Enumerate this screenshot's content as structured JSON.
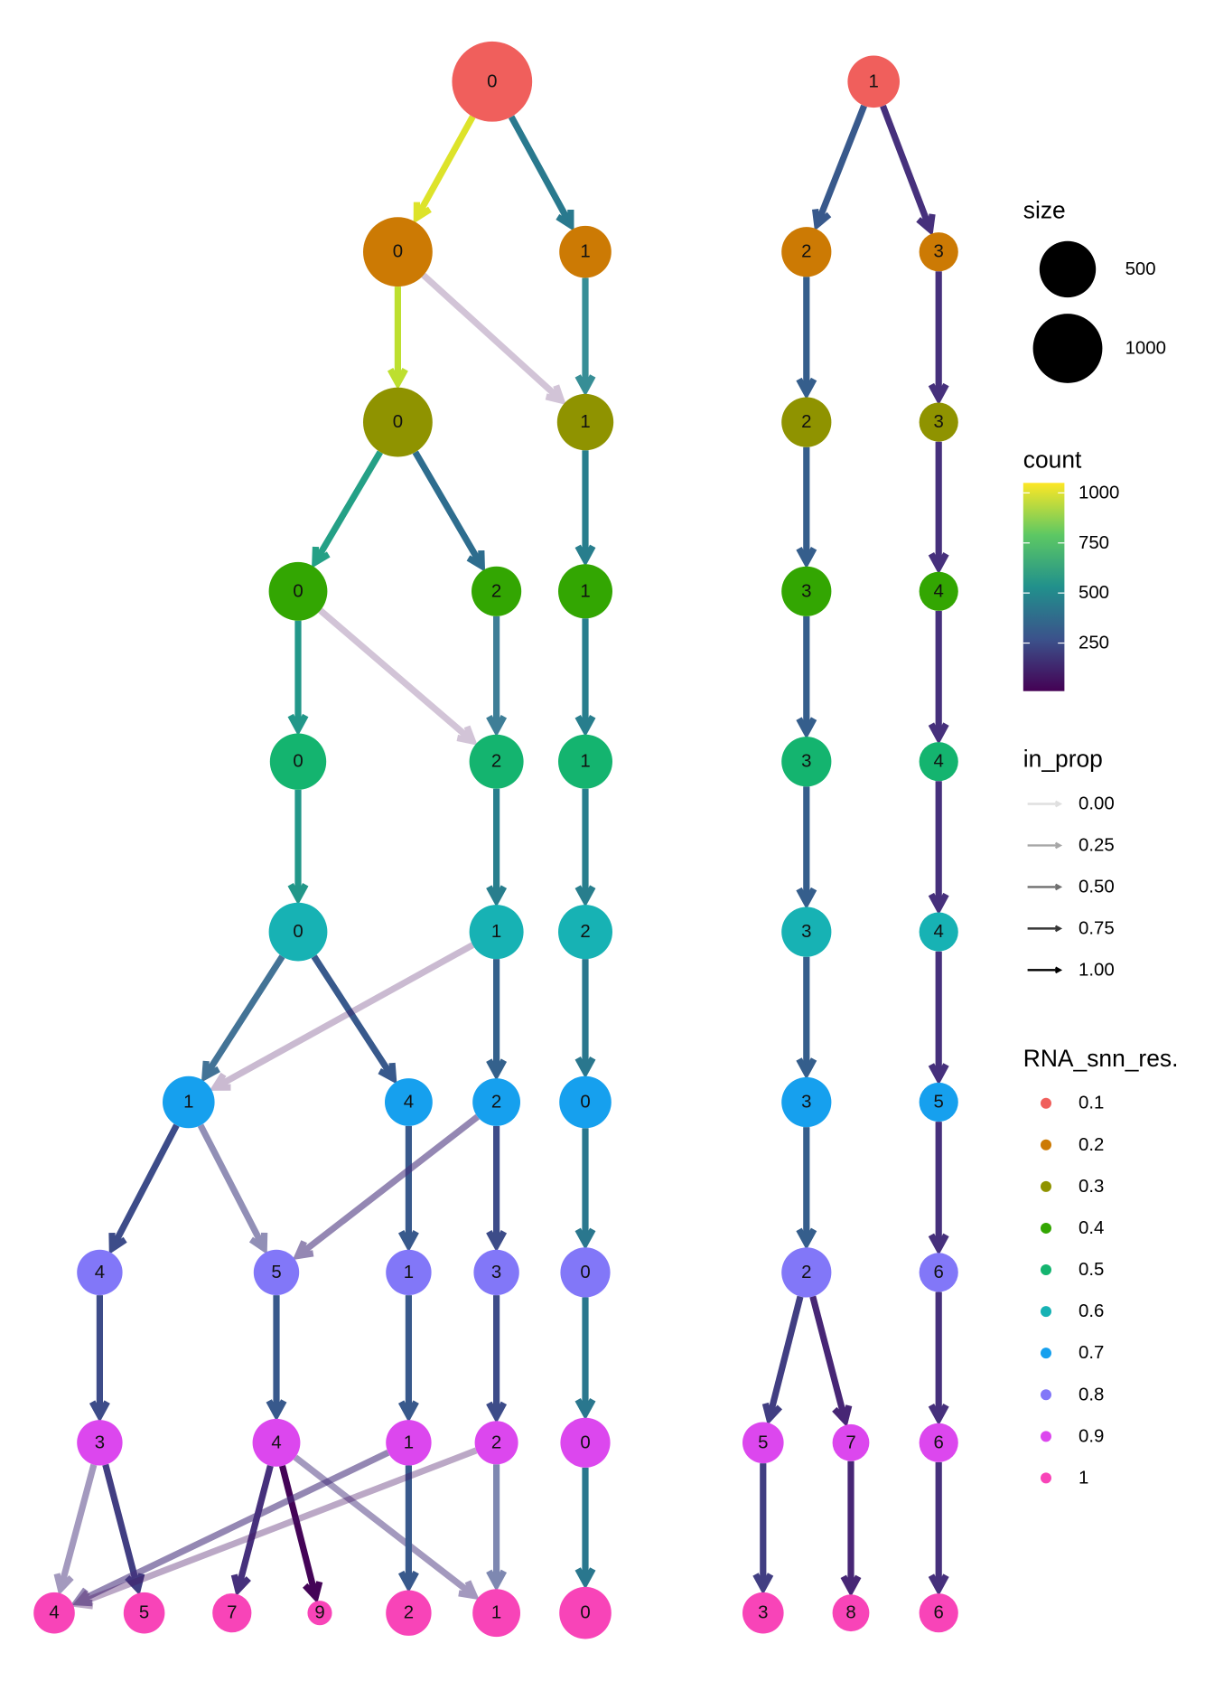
{
  "levels": [
    {
      "res": "0.1",
      "color": "#F05F5C",
      "nodes": [
        {
          "label": "0",
          "size": 1480
        },
        {
          "label": "1",
          "size": 425
        }
      ]
    },
    {
      "res": "0.2",
      "color": "#CC7A04",
      "nodes": [
        {
          "label": "0",
          "size": 1000
        },
        {
          "label": "1",
          "size": 425
        },
        {
          "label": "2",
          "size": 370
        },
        {
          "label": "3",
          "size": 153
        }
      ]
    },
    {
      "res": "0.3",
      "color": "#8F9300",
      "nodes": [
        {
          "label": "0",
          "size": 1000
        },
        {
          "label": "1",
          "size": 546
        },
        {
          "label": "2",
          "size": 370
        },
        {
          "label": "3",
          "size": 153
        }
      ]
    },
    {
      "res": "0.4",
      "color": "#33A602",
      "nodes": [
        {
          "label": "0",
          "size": 612
        },
        {
          "label": "2",
          "size": 370
        },
        {
          "label": "1",
          "size": 484
        },
        {
          "label": "3",
          "size": 370
        },
        {
          "label": "4",
          "size": 153
        }
      ]
    },
    {
      "res": "0.5",
      "color": "#14B46F",
      "nodes": [
        {
          "label": "0",
          "size": 546
        },
        {
          "label": "2",
          "size": 484
        },
        {
          "label": "1",
          "size": 484
        },
        {
          "label": "3",
          "size": 370
        },
        {
          "label": "4",
          "size": 153
        }
      ]
    },
    {
      "res": "0.6",
      "color": "#17B2B4",
      "nodes": [
        {
          "label": "0",
          "size": 612
        },
        {
          "label": "1",
          "size": 484
        },
        {
          "label": "2",
          "size": 484
        },
        {
          "label": "3",
          "size": 370
        },
        {
          "label": "4",
          "size": 153
        }
      ]
    },
    {
      "res": "0.7",
      "color": "#16A0EE",
      "nodes": [
        {
          "label": "1",
          "size": 425
        },
        {
          "label": "4",
          "size": 320
        },
        {
          "label": "2",
          "size": 320
        },
        {
          "label": "0",
          "size": 425
        },
        {
          "label": "3",
          "size": 370
        },
        {
          "label": "5",
          "size": 153
        }
      ]
    },
    {
      "res": "0.8",
      "color": "#8277F8",
      "nodes": [
        {
          "label": "4",
          "size": 272
        },
        {
          "label": "5",
          "size": 272
        },
        {
          "label": "1",
          "size": 272
        },
        {
          "label": "3",
          "size": 272
        },
        {
          "label": "0",
          "size": 370
        },
        {
          "label": "2",
          "size": 370
        },
        {
          "label": "6",
          "size": 153
        }
      ]
    },
    {
      "res": "0.9",
      "color": "#DC47EE",
      "nodes": [
        {
          "label": "3",
          "size": 272
        },
        {
          "label": "4",
          "size": 320
        },
        {
          "label": "1",
          "size": 272
        },
        {
          "label": "2",
          "size": 229
        },
        {
          "label": "0",
          "size": 370
        },
        {
          "label": "5",
          "size": 189
        },
        {
          "label": "7",
          "size": 121
        },
        {
          "label": "6",
          "size": 153
        }
      ]
    },
    {
      "res": "1",
      "color": "#F844B8",
      "nodes": [
        {
          "label": "4",
          "size": 189
        },
        {
          "label": "5",
          "size": 189
        },
        {
          "label": "7",
          "size": 153
        },
        {
          "label": "9",
          "size": 10
        },
        {
          "label": "2",
          "size": 272
        },
        {
          "label": "1",
          "size": 320
        },
        {
          "label": "0",
          "size": 425
        },
        {
          "label": "3",
          "size": 189
        },
        {
          "label": "8",
          "size": 121
        },
        {
          "label": "6",
          "size": 153
        }
      ]
    }
  ],
  "edges": [
    [
      0,
      0,
      0,
      1000,
      1.0
    ],
    [
      0,
      0,
      1,
      430,
      1.0
    ],
    [
      0,
      1,
      2,
      300,
      1.0
    ],
    [
      0,
      1,
      3,
      150,
      1.0
    ],
    [
      1,
      0,
      0,
      950,
      1.0
    ],
    [
      1,
      0,
      1,
      30,
      0.1
    ],
    [
      1,
      1,
      1,
      480,
      0.9
    ],
    [
      1,
      2,
      2,
      320,
      1.0
    ],
    [
      1,
      3,
      3,
      150,
      1.0
    ],
    [
      2,
      0,
      0,
      600,
      1.0
    ],
    [
      2,
      0,
      1,
      380,
      1.0
    ],
    [
      2,
      1,
      2,
      450,
      1.0
    ],
    [
      2,
      2,
      3,
      320,
      1.0
    ],
    [
      2,
      3,
      4,
      150,
      1.0
    ],
    [
      3,
      0,
      0,
      560,
      1.0
    ],
    [
      3,
      0,
      1,
      30,
      0.1
    ],
    [
      3,
      1,
      1,
      400,
      0.9
    ],
    [
      3,
      2,
      2,
      450,
      1.0
    ],
    [
      3,
      3,
      3,
      320,
      1.0
    ],
    [
      3,
      4,
      4,
      150,
      1.0
    ],
    [
      4,
      0,
      0,
      560,
      1.0
    ],
    [
      4,
      1,
      1,
      450,
      1.0
    ],
    [
      4,
      2,
      2,
      450,
      1.0
    ],
    [
      4,
      3,
      3,
      320,
      1.0
    ],
    [
      4,
      4,
      4,
      150,
      1.0
    ],
    [
      5,
      0,
      0,
      350,
      0.9
    ],
    [
      5,
      0,
      1,
      300,
      1.0
    ],
    [
      5,
      1,
      0,
      40,
      0.15
    ],
    [
      5,
      1,
      2,
      330,
      1.0
    ],
    [
      5,
      2,
      3,
      420,
      1.0
    ],
    [
      5,
      3,
      4,
      320,
      1.0
    ],
    [
      5,
      4,
      5,
      150,
      1.0
    ],
    [
      6,
      0,
      0,
      250,
      1.0
    ],
    [
      6,
      0,
      1,
      200,
      0.5
    ],
    [
      6,
      1,
      2,
      300,
      1.0
    ],
    [
      6,
      2,
      1,
      150,
      0.5
    ],
    [
      6,
      2,
      3,
      250,
      1.0
    ],
    [
      6,
      3,
      4,
      420,
      1.0
    ],
    [
      6,
      4,
      5,
      320,
      1.0
    ],
    [
      6,
      5,
      6,
      150,
      1.0
    ],
    [
      7,
      0,
      0,
      250,
      1.0
    ],
    [
      7,
      1,
      1,
      300,
      1.0
    ],
    [
      7,
      2,
      2,
      300,
      1.0
    ],
    [
      7,
      3,
      3,
      250,
      1.0
    ],
    [
      7,
      4,
      4,
      420,
      1.0
    ],
    [
      7,
      5,
      5,
      200,
      1.0
    ],
    [
      7,
      5,
      6,
      120,
      1.0
    ],
    [
      7,
      6,
      7,
      150,
      1.0
    ],
    [
      8,
      0,
      0,
      150,
      0.4
    ],
    [
      8,
      0,
      1,
      200,
      1.0
    ],
    [
      8,
      1,
      2,
      150,
      1.0
    ],
    [
      8,
      1,
      3,
      20,
      1.0
    ],
    [
      8,
      1,
      5,
      150,
      0.4
    ],
    [
      8,
      2,
      0,
      150,
      0.5
    ],
    [
      8,
      2,
      4,
      300,
      1.0
    ],
    [
      8,
      3,
      0,
      60,
      0.25
    ],
    [
      8,
      3,
      5,
      250,
      0.6
    ],
    [
      8,
      4,
      6,
      420,
      1.0
    ],
    [
      8,
      5,
      7,
      200,
      1.0
    ],
    [
      8,
      6,
      8,
      120,
      1.0
    ],
    [
      8,
      7,
      9,
      150,
      1.0
    ]
  ],
  "legend": {
    "size": {
      "title": "size",
      "items": [
        {
          "label": "500",
          "value": 500
        },
        {
          "label": "1000",
          "value": 1000
        }
      ]
    },
    "count": {
      "title": "count",
      "ticks": [
        {
          "label": "1000",
          "value": 1000
        },
        {
          "label": "750",
          "value": 750
        },
        {
          "label": "500",
          "value": 500
        },
        {
          "label": "250",
          "value": 250
        }
      ],
      "range": [
        10,
        1050
      ]
    },
    "in_prop": {
      "title": "in_prop",
      "items": [
        {
          "label": "0.00",
          "value": 0.0
        },
        {
          "label": "0.25",
          "value": 0.25
        },
        {
          "label": "0.50",
          "value": 0.5
        },
        {
          "label": "0.75",
          "value": 0.75
        },
        {
          "label": "1.00",
          "value": 1.0
        }
      ]
    },
    "res": {
      "title": "RNA_snn_res.",
      "items": [
        "0.1",
        "0.2",
        "0.3",
        "0.4",
        "0.5",
        "0.6",
        "0.7",
        "0.8",
        "0.9",
        "1"
      ]
    }
  }
}
